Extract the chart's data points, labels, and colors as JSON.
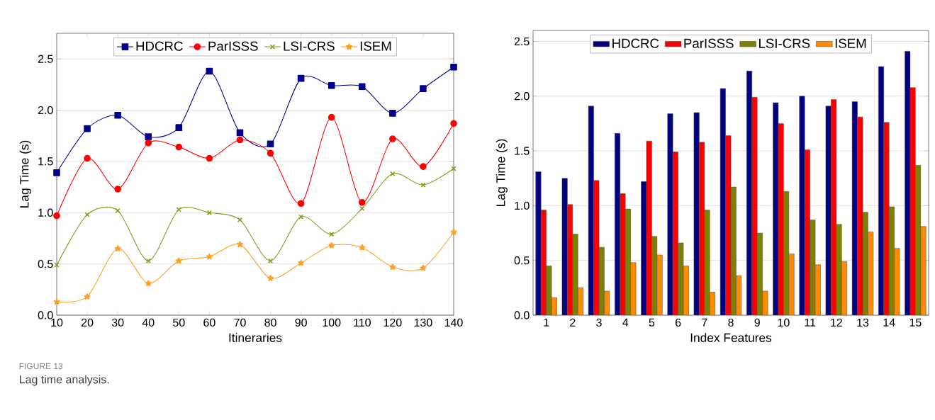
{
  "chart_data": [
    {
      "type": "line",
      "xlabel": "Itineraries",
      "ylabel": "Lag Time (s)",
      "x": [
        10,
        20,
        30,
        40,
        50,
        60,
        70,
        80,
        90,
        100,
        110,
        120,
        130,
        140
      ],
      "series": [
        {
          "name": "HDCRC",
          "color": "#00008b",
          "marker": "square",
          "values": [
            1.39,
            1.82,
            1.95,
            1.74,
            1.83,
            2.38,
            1.78,
            1.67,
            2.31,
            2.24,
            2.23,
            1.97,
            2.21,
            2.42
          ]
        },
        {
          "name": "ParISSS",
          "color": "#ff0000",
          "marker": "circle",
          "values": [
            0.97,
            1.53,
            1.23,
            1.68,
            1.64,
            1.53,
            1.71,
            1.58,
            1.09,
            1.93,
            1.1,
            1.72,
            1.45,
            1.87
          ]
        },
        {
          "name": "LSI-CRS",
          "color": "#8a9a1b",
          "marker": "cross",
          "values": [
            0.49,
            0.98,
            1.02,
            0.53,
            1.03,
            1.0,
            0.93,
            0.53,
            0.96,
            0.79,
            1.04,
            1.38,
            1.27,
            1.43
          ]
        },
        {
          "name": "ISEM",
          "color": "#ffa020",
          "marker": "star",
          "values": [
            0.13,
            0.18,
            0.65,
            0.31,
            0.53,
            0.57,
            0.69,
            0.36,
            0.51,
            0.68,
            0.66,
            0.47,
            0.46,
            0.81
          ]
        }
      ],
      "xlim": [
        10,
        140
      ],
      "xticks": [
        10,
        20,
        30,
        40,
        50,
        60,
        70,
        80,
        90,
        100,
        110,
        120,
        130,
        140
      ],
      "ylim": [
        0,
        2.75
      ],
      "yticks": [
        {
          "value": 0,
          "label": "0.0"
        },
        {
          "value": 0.5,
          "label": "0.5"
        },
        {
          "value": 1,
          "label": "1.0"
        },
        {
          "value": 1.5,
          "label": "1.5"
        },
        {
          "value": 2,
          "label": "2.0"
        },
        {
          "value": 2.5,
          "label": "2.5"
        }
      ],
      "grid": "y",
      "legend": "top",
      "line_style": "solid",
      "annotations": [
        "FIGURE 13",
        "Lag time analysis."
      ]
    },
    {
      "type": "bar",
      "xlabel": "Index Features",
      "ylabel": "Lag Time (s)",
      "categories": [
        "1",
        "2",
        "3",
        "4",
        "5",
        "6",
        "7",
        "8",
        "9",
        "10",
        "11",
        "12",
        "13",
        "14",
        "15"
      ],
      "series": [
        {
          "name": "HDCRC",
          "color": "#000080",
          "values": [
            1.31,
            1.25,
            1.91,
            1.66,
            1.22,
            1.84,
            1.85,
            2.07,
            2.23,
            1.94,
            2.0,
            1.91,
            1.95,
            2.27,
            2.41
          ]
        },
        {
          "name": "ParISSS",
          "color": "#ff0000",
          "values": [
            0.96,
            1.01,
            1.23,
            1.11,
            1.59,
            1.49,
            1.58,
            1.64,
            1.99,
            1.75,
            1.51,
            1.97,
            1.81,
            1.76,
            2.08
          ]
        },
        {
          "name": "LSI-CRS",
          "color": "#808000",
          "values": [
            0.45,
            0.74,
            0.62,
            0.97,
            0.72,
            0.66,
            0.96,
            1.17,
            0.75,
            1.13,
            0.87,
            0.83,
            0.94,
            0.99,
            1.37
          ]
        },
        {
          "name": "ISEM",
          "color": "#ff8c00",
          "values": [
            0.16,
            0.25,
            0.22,
            0.48,
            0.55,
            0.45,
            0.21,
            0.36,
            0.22,
            0.56,
            0.46,
            0.49,
            0.76,
            0.61,
            0.81
          ]
        }
      ],
      "ylim": [
        0,
        2.6
      ],
      "yticks": [
        {
          "value": 0,
          "label": "0.0"
        },
        {
          "value": 0.5,
          "label": "0.5"
        },
        {
          "value": 1,
          "label": "1.0"
        },
        {
          "value": 1.5,
          "label": "1.5"
        },
        {
          "value": 2,
          "label": "2.0"
        },
        {
          "value": 2.5,
          "label": "2.5"
        }
      ],
      "grid": "y",
      "legend": "top"
    }
  ]
}
